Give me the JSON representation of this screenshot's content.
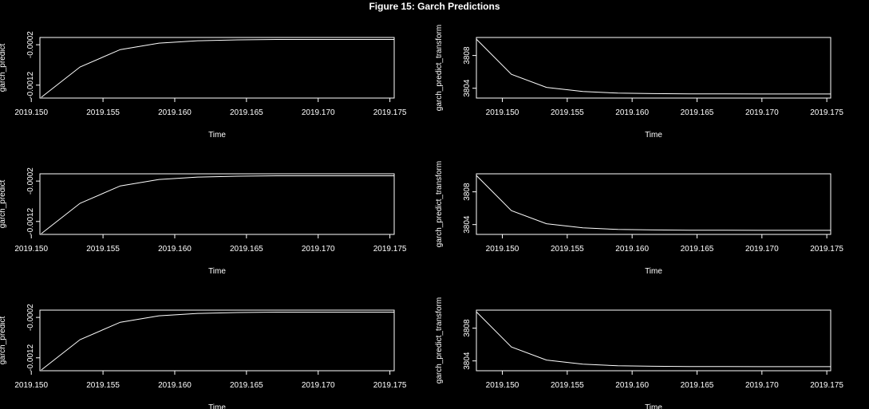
{
  "title": "Figure  15: Garch Predictions",
  "colors": {
    "background": "#000000",
    "foreground": "#ffffff"
  },
  "chart_data": [
    {
      "type": "line",
      "xlabel": "Time",
      "ylabel": "garch_predict",
      "xlim": [
        2019.1506,
        2019.1753
      ],
      "ylim": [
        -0.00152,
        -2e-05
      ],
      "xticks": [
        2019.15,
        2019.155,
        2019.16,
        2019.165,
        2019.17,
        2019.175
      ],
      "xtick_labels": [
        "2019.150",
        "2019.155",
        "2019.160",
        "2019.165",
        "2019.170",
        "2019.175"
      ],
      "yticks": [
        -0.0012,
        -0.0002
      ],
      "ytick_labels": [
        "-0.0012",
        "-0.0002"
      ],
      "series": [
        {
          "x": [
            2019.1507,
            2019.1534,
            2019.1562,
            2019.1589,
            2019.1616,
            2019.1644,
            2019.1671,
            2019.1699,
            2019.1726,
            2019.1753
          ],
          "y": [
            -0.0015,
            -0.00075,
            -0.00032,
            -0.00016,
            -0.0001,
            -8e-05,
            -7e-05,
            -7e-05,
            -7e-05,
            -7e-05
          ]
        }
      ]
    },
    {
      "type": "line",
      "xlabel": "Time",
      "ylabel": "garch_predict_transform",
      "xlim": [
        2019.148,
        2019.1753
      ],
      "ylim": [
        3802.8,
        3810.2
      ],
      "xticks": [
        2019.15,
        2019.155,
        2019.16,
        2019.165,
        2019.17,
        2019.175
      ],
      "xtick_labels": [
        "2019.150",
        "2019.155",
        "2019.160",
        "2019.165",
        "2019.170",
        "2019.175"
      ],
      "yticks": [
        3804,
        3808
      ],
      "ytick_labels": [
        "3804",
        "3808"
      ],
      "series": [
        {
          "x": [
            2019.148,
            2019.1507,
            2019.1534,
            2019.1562,
            2019.1589,
            2019.1616,
            2019.1644,
            2019.1671,
            2019.1699,
            2019.1726,
            2019.1753
          ],
          "y": [
            3810.0,
            3805.7,
            3804.1,
            3803.6,
            3803.4,
            3803.35,
            3803.32,
            3803.31,
            3803.3,
            3803.3,
            3803.3
          ]
        }
      ]
    },
    {
      "type": "line",
      "xlabel": "Time",
      "ylabel": "garch_predict",
      "xlim": [
        2019.1506,
        2019.1753
      ],
      "ylim": [
        -0.00152,
        -2e-05
      ],
      "xticks": [
        2019.15,
        2019.155,
        2019.16,
        2019.165,
        2019.17,
        2019.175
      ],
      "xtick_labels": [
        "2019.150",
        "2019.155",
        "2019.160",
        "2019.165",
        "2019.170",
        "2019.175"
      ],
      "yticks": [
        -0.0012,
        -0.0002
      ],
      "ytick_labels": [
        "-0.0012",
        "-0.0002"
      ],
      "series": [
        {
          "x": [
            2019.1507,
            2019.1534,
            2019.1562,
            2019.1589,
            2019.1616,
            2019.1644,
            2019.1671,
            2019.1699,
            2019.1726,
            2019.1753
          ],
          "y": [
            -0.0015,
            -0.00075,
            -0.00032,
            -0.00016,
            -0.0001,
            -8e-05,
            -7e-05,
            -7e-05,
            -7e-05,
            -7e-05
          ]
        }
      ]
    },
    {
      "type": "line",
      "xlabel": "Time",
      "ylabel": "garch_predict_transform",
      "xlim": [
        2019.148,
        2019.1753
      ],
      "ylim": [
        3802.8,
        3810.2
      ],
      "xticks": [
        2019.15,
        2019.155,
        2019.16,
        2019.165,
        2019.17,
        2019.175
      ],
      "xtick_labels": [
        "2019.150",
        "2019.155",
        "2019.160",
        "2019.165",
        "2019.170",
        "2019.175"
      ],
      "yticks": [
        3804,
        3808
      ],
      "ytick_labels": [
        "3804",
        "3808"
      ],
      "series": [
        {
          "x": [
            2019.148,
            2019.1507,
            2019.1534,
            2019.1562,
            2019.1589,
            2019.1616,
            2019.1644,
            2019.1671,
            2019.1699,
            2019.1726,
            2019.1753
          ],
          "y": [
            3810.0,
            3805.7,
            3804.1,
            3803.6,
            3803.4,
            3803.35,
            3803.32,
            3803.31,
            3803.3,
            3803.3,
            3803.3
          ]
        }
      ]
    },
    {
      "type": "line",
      "xlabel": "Time",
      "ylabel": "garch_predict",
      "xlim": [
        2019.1506,
        2019.1753
      ],
      "ylim": [
        -0.00152,
        -2e-05
      ],
      "xticks": [
        2019.15,
        2019.155,
        2019.16,
        2019.165,
        2019.17,
        2019.175
      ],
      "xtick_labels": [
        "2019.150",
        "2019.155",
        "2019.160",
        "2019.165",
        "2019.170",
        "2019.175"
      ],
      "yticks": [
        -0.0012,
        -0.0002
      ],
      "ytick_labels": [
        "-0.0012",
        "-0.0002"
      ],
      "series": [
        {
          "x": [
            2019.1507,
            2019.1534,
            2019.1562,
            2019.1589,
            2019.1616,
            2019.1644,
            2019.1671,
            2019.1699,
            2019.1726,
            2019.1753
          ],
          "y": [
            -0.0015,
            -0.00075,
            -0.00032,
            -0.00016,
            -0.0001,
            -8e-05,
            -7e-05,
            -7e-05,
            -7e-05,
            -7e-05
          ]
        }
      ]
    },
    {
      "type": "line",
      "xlabel": "Time",
      "ylabel": "garch_predict_transform",
      "xlim": [
        2019.148,
        2019.1753
      ],
      "ylim": [
        3802.8,
        3810.2
      ],
      "xticks": [
        2019.15,
        2019.155,
        2019.16,
        2019.165,
        2019.17,
        2019.175
      ],
      "xtick_labels": [
        "2019.150",
        "2019.155",
        "2019.160",
        "2019.165",
        "2019.170",
        "2019.175"
      ],
      "yticks": [
        3804,
        3808
      ],
      "ytick_labels": [
        "3804",
        "3808"
      ],
      "series": [
        {
          "x": [
            2019.148,
            2019.1507,
            2019.1534,
            2019.1562,
            2019.1589,
            2019.1616,
            2019.1644,
            2019.1671,
            2019.1699,
            2019.1726,
            2019.1753
          ],
          "y": [
            3810.0,
            3805.7,
            3804.1,
            3803.6,
            3803.4,
            3803.35,
            3803.32,
            3803.31,
            3803.3,
            3803.3,
            3803.3
          ]
        }
      ]
    }
  ]
}
